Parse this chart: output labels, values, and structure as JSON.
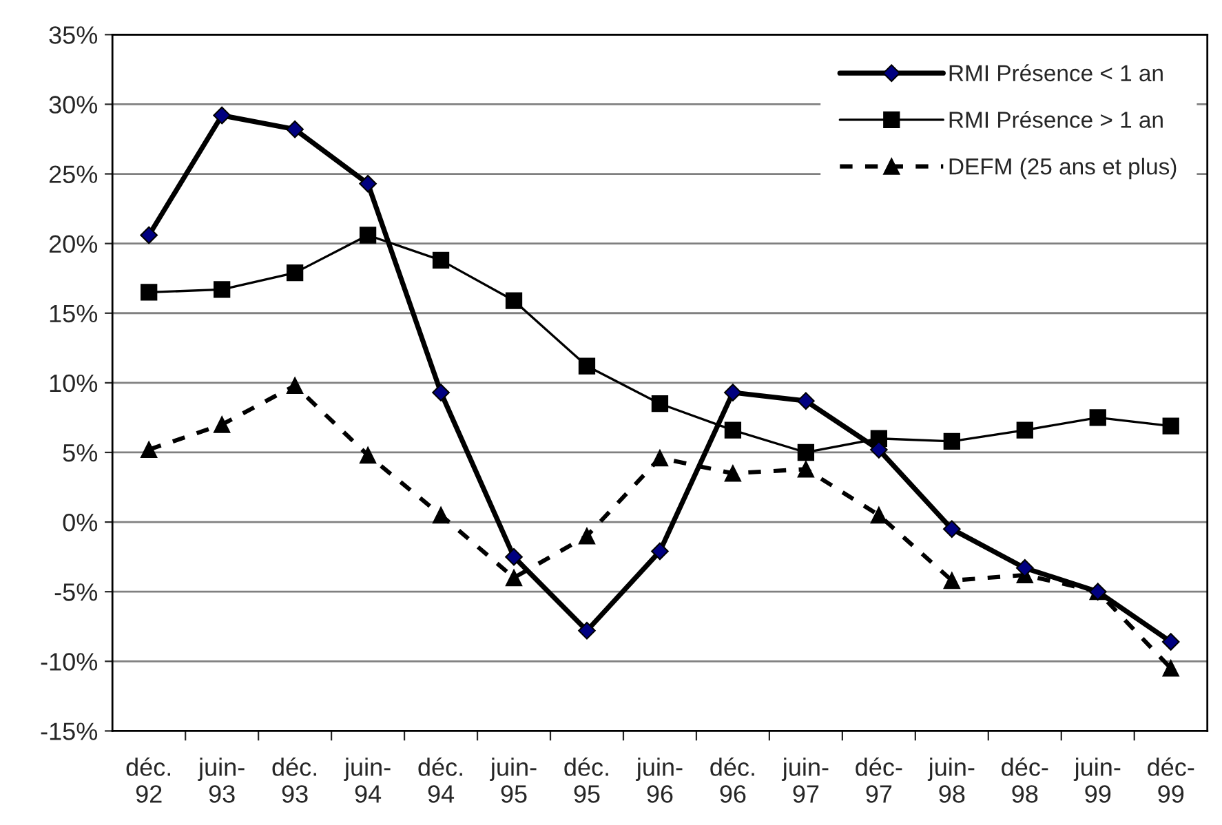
{
  "chart_data": {
    "type": "line",
    "categories": [
      "déc.\n92",
      "juin-\n93",
      "déc.\n93",
      "juin-\n94",
      "déc.\n94",
      "juin-\n95",
      "déc.\n95",
      "juin-\n96",
      "déc.\n96",
      "juin-\n97",
      "déc-\n97",
      "juin-\n98",
      "déc-\n98",
      "juin-\n99",
      "déc-\n99"
    ],
    "series": [
      {
        "name": "RMI Présence < 1 an",
        "color": "#000000",
        "marker": "diamond",
        "line_style": "solid",
        "values": [
          20.6,
          29.2,
          28.2,
          24.3,
          9.3,
          -2.5,
          -7.8,
          -2.1,
          9.3,
          8.7,
          5.2,
          -0.5,
          -3.3,
          -5.0,
          -8.6
        ]
      },
      {
        "name": "RMI Présence > 1 an",
        "color": "#000000",
        "marker": "square",
        "line_style": "solid",
        "values": [
          16.5,
          16.7,
          17.9,
          20.6,
          18.8,
          15.9,
          11.2,
          8.5,
          6.6,
          5.0,
          6.0,
          5.8,
          6.6,
          7.5,
          6.9
        ]
      },
      {
        "name": "DEFM (25 ans et plus)",
        "color": "#000000",
        "marker": "triangle",
        "line_style": "dashed",
        "values": [
          5.2,
          7.0,
          9.8,
          4.8,
          0.5,
          -4.0,
          -1.0,
          4.6,
          3.5,
          3.8,
          0.5,
          -4.2,
          -3.8,
          -5.0,
          -10.5
        ]
      }
    ],
    "ylim": [
      -15,
      35
    ],
    "yticks": [
      {
        "value": -15,
        "label": "-15%"
      },
      {
        "value": -10,
        "label": "-10%"
      },
      {
        "value": -5,
        "label": "-5%"
      },
      {
        "value": 0,
        "label": "0%"
      },
      {
        "value": 5,
        "label": "5%"
      },
      {
        "value": 10,
        "label": "10%"
      },
      {
        "value": 15,
        "label": "15%"
      },
      {
        "value": 20,
        "label": "20%"
      },
      {
        "value": 25,
        "label": "25%"
      },
      {
        "value": 30,
        "label": "30%"
      },
      {
        "value": 35,
        "label": "35%"
      }
    ],
    "grid": "y",
    "legend": "top right"
  }
}
